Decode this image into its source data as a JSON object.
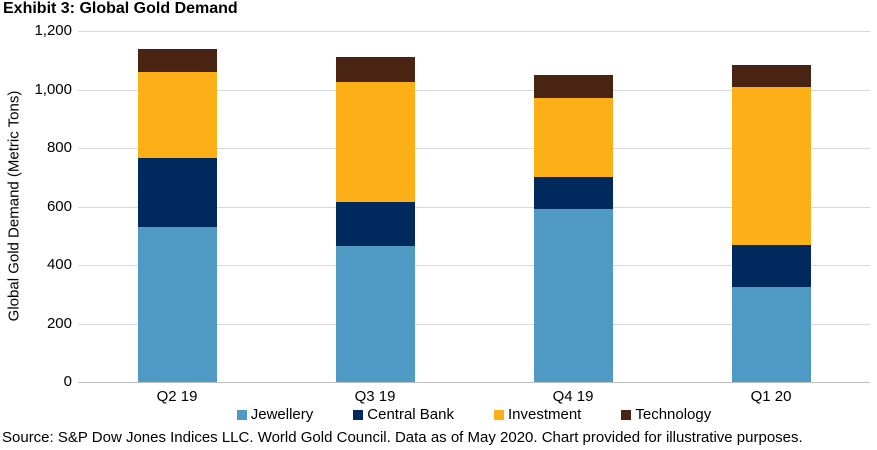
{
  "title": "Exhibit 3: Global Gold Demand",
  "footer": {
    "source": "Source: S&P Dow Jones Indices LLC. World Gold Council. Data as of May 2020. Chart provided for illustrative purposes."
  },
  "chart_data": {
    "type": "bar",
    "stacked": true,
    "title": "Exhibit 3: Global Gold Demand",
    "xlabel": "",
    "ylabel": "Global Gold Demand (Metric Tons)",
    "ylim": [
      0,
      1200
    ],
    "ytick_step": 200,
    "grid": true,
    "legend_position": "bottom",
    "categories": [
      "Q2 19",
      "Q3 19",
      "Q4 19",
      "Q1 20"
    ],
    "series": [
      {
        "name": "Jewellery",
        "color": "#4F9AC5",
        "values": [
          530,
          465,
          590,
          325
        ]
      },
      {
        "name": "Central Bank",
        "color": "#002A5E",
        "values": [
          235,
          150,
          110,
          145
        ]
      },
      {
        "name": "Investment",
        "color": "#FCAF17",
        "values": [
          295,
          410,
          270,
          540
        ]
      },
      {
        "name": "Technology",
        "color": "#4A2413",
        "values": [
          80,
          85,
          80,
          75
        ]
      }
    ],
    "totals": [
      1140,
      1110,
      1050,
      1085
    ]
  }
}
